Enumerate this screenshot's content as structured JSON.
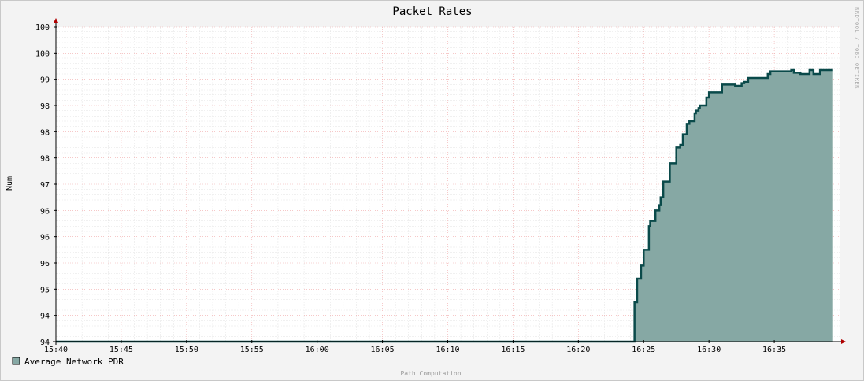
{
  "chart_data": {
    "type": "area",
    "title": "Packet Rates",
    "ylabel": "Num",
    "footer": "Path Computation",
    "side_label": "RRDTOOL / TOBI OETIKER",
    "x_ticks": [
      "15:40",
      "15:45",
      "15:50",
      "15:55",
      "16:00",
      "16:05",
      "16:10",
      "16:15",
      "16:20",
      "16:25",
      "16:30",
      "16:35"
    ],
    "y_ticks": [
      "94",
      "94",
      "95",
      "96",
      "96",
      "96",
      "97",
      "98",
      "98",
      "98",
      "99",
      "100",
      "100"
    ],
    "xlim": [
      0,
      60
    ],
    "ylim": [
      0,
      12
    ],
    "series": [
      {
        "name": "Average Network PDR",
        "color": "#86a8a4",
        "line_color": "#0a4a4a",
        "x": [
          0,
          44.3,
          44.5,
          44.8,
          45.0,
          45.1,
          45.4,
          45.5,
          45.9,
          46.0,
          46.2,
          46.3,
          46.5,
          46.8,
          47.0,
          47.3,
          47.5,
          47.8,
          48.0,
          48.3,
          48.5,
          48.9,
          49.0,
          49.2,
          49.3,
          49.5,
          49.8,
          50.0,
          50.5,
          51.0,
          51.3,
          51.5,
          52.0,
          52.5,
          52.7,
          53.0,
          53.3,
          53.6,
          54.2,
          54.5,
          54.7,
          55.0,
          55.3,
          56.0,
          56.3,
          56.5,
          57.0,
          57.7,
          58.0,
          58.5,
          59.5
        ],
        "y": [
          0,
          1.5,
          2.4,
          2.9,
          3.5,
          3.5,
          4.4,
          4.6,
          5.0,
          5.0,
          5.2,
          5.5,
          6.1,
          6.1,
          6.8,
          6.8,
          7.4,
          7.5,
          7.9,
          8.3,
          8.4,
          8.7,
          8.8,
          8.9,
          9.0,
          9.0,
          9.3,
          9.5,
          9.5,
          9.8,
          9.8,
          9.8,
          9.75,
          9.85,
          9.9,
          10.05,
          10.05,
          10.05,
          10.05,
          10.2,
          10.3,
          10.3,
          10.3,
          10.3,
          10.35,
          10.25,
          10.2,
          10.35,
          10.2,
          10.35,
          10.35
        ]
      }
    ]
  }
}
